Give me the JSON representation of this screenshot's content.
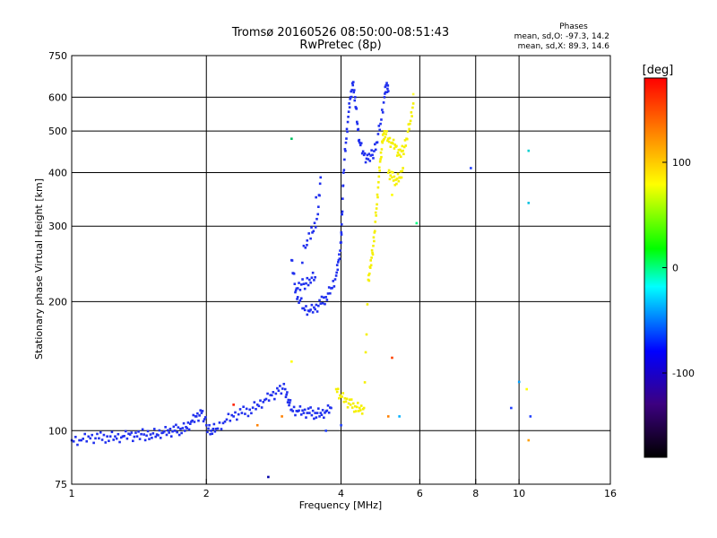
{
  "chart_data": {
    "type": "scatter",
    "title": "Tromsø 20160526 08:50:00-08:51:43",
    "subtitle": "RwPretec (8p)",
    "xlabel": "Frequency [MHz]",
    "ylabel": "Stationary phase Virtual Height [km]",
    "x_scale": "log",
    "y_scale": "log",
    "xlim": [
      1,
      16
    ],
    "ylim": [
      75,
      750
    ],
    "x_ticks": [
      1,
      2,
      4,
      6,
      8,
      10,
      16
    ],
    "y_ticks": [
      75,
      100,
      200,
      300,
      400,
      500,
      600,
      750
    ],
    "grid": true,
    "stats": {
      "heading": "Phases",
      "o_line": "mean, sd,O: -97.3, 14.2",
      "x_line": "mean, sd,X: 89.3, 14.6"
    },
    "colorbar": {
      "label": "[deg]",
      "range": [
        -180,
        180
      ],
      "ticks": [
        100,
        0,
        -100
      ],
      "colors": [
        "#000000",
        "#3c0080",
        "#0000ff",
        "#00ffff",
        "#00ff00",
        "#ffff00",
        "#ff0000"
      ]
    },
    "series": [
      {
        "name": "O",
        "color": "#1f2ff0",
        "description_points": []
      },
      {
        "name": "X",
        "color": "#ffff00"
      }
    ],
    "o_trace": {
      "color": "#2030ee",
      "points": [
        [
          1.0,
          95
        ],
        [
          1.05,
          95
        ],
        [
          1.1,
          96
        ],
        [
          1.15,
          96
        ],
        [
          1.2,
          97
        ],
        [
          1.25,
          97
        ],
        [
          1.3,
          97
        ],
        [
          1.35,
          98
        ],
        [
          1.4,
          97
        ],
        [
          1.45,
          98
        ],
        [
          1.5,
          98
        ],
        [
          1.55,
          98
        ],
        [
          1.6,
          99
        ],
        [
          1.65,
          99
        ],
        [
          1.7,
          100
        ],
        [
          1.75,
          101
        ],
        [
          1.8,
          102
        ],
        [
          1.85,
          105
        ],
        [
          1.9,
          108
        ],
        [
          1.95,
          110
        ],
        [
          2.0,
          103
        ],
        [
          2.05,
          100
        ],
        [
          2.1,
          101
        ],
        [
          2.2,
          105
        ],
        [
          2.3,
          108
        ],
        [
          2.4,
          110
        ],
        [
          2.5,
          112
        ],
        [
          2.6,
          115
        ],
        [
          2.7,
          118
        ],
        [
          2.8,
          121
        ],
        [
          2.9,
          124
        ],
        [
          3.0,
          125
        ],
        [
          3.05,
          118
        ],
        [
          3.1,
          112
        ],
        [
          3.2,
          111
        ],
        [
          3.3,
          110
        ],
        [
          3.4,
          110
        ],
        [
          3.5,
          110
        ],
        [
          3.6,
          110
        ],
        [
          3.7,
          111
        ],
        [
          3.8,
          113
        ],
        [
          3.1,
          250
        ],
        [
          3.15,
          220
        ],
        [
          3.2,
          205
        ],
        [
          3.3,
          193
        ],
        [
          3.4,
          190
        ],
        [
          3.5,
          192
        ],
        [
          3.6,
          198
        ],
        [
          3.7,
          205
        ],
        [
          3.8,
          215
        ],
        [
          3.9,
          230
        ],
        [
          3.95,
          250
        ],
        [
          4.0,
          275
        ],
        [
          4.02,
          320
        ],
        [
          4.05,
          400
        ],
        [
          4.1,
          470
        ],
        [
          4.15,
          540
        ],
        [
          4.2,
          600
        ],
        [
          4.25,
          640
        ],
        [
          4.3,
          600
        ],
        [
          4.35,
          520
        ],
        [
          4.4,
          470
        ],
        [
          4.5,
          440
        ],
        [
          4.6,
          430
        ],
        [
          4.7,
          440
        ],
        [
          4.8,
          470
        ],
        [
          4.9,
          520
        ],
        [
          5.0,
          600
        ],
        [
          5.05,
          640
        ],
        [
          5.1,
          620
        ],
        [
          3.3,
          270
        ],
        [
          3.45,
          290
        ],
        [
          3.55,
          320
        ],
        [
          3.6,
          390
        ],
        [
          3.2,
          215
        ],
        [
          3.3,
          220
        ],
        [
          3.4,
          225
        ],
        [
          3.5,
          228
        ]
      ]
    },
    "x_trace": {
      "color": "#f5f000",
      "points": [
        [
          3.9,
          125
        ],
        [
          4.0,
          120
        ],
        [
          4.1,
          117
        ],
        [
          4.2,
          115
        ],
        [
          4.3,
          114
        ],
        [
          4.4,
          113
        ],
        [
          4.5,
          113
        ],
        [
          4.6,
          225
        ],
        [
          4.65,
          240
        ],
        [
          4.7,
          260
        ],
        [
          4.75,
          290
        ],
        [
          4.8,
          330
        ],
        [
          4.85,
          380
        ],
        [
          4.9,
          430
        ],
        [
          4.95,
          470
        ],
        [
          5.0,
          500
        ],
        [
          5.1,
          480
        ],
        [
          5.2,
          470
        ],
        [
          5.3,
          460
        ],
        [
          5.4,
          440
        ],
        [
          5.5,
          450
        ],
        [
          5.6,
          480
        ],
        [
          5.7,
          520
        ],
        [
          5.8,
          580
        ],
        [
          5.1,
          400
        ],
        [
          5.2,
          390
        ],
        [
          5.3,
          385
        ],
        [
          5.4,
          390
        ],
        [
          5.5,
          410
        ]
      ]
    },
    "scatter_points": [
      [
        3.1,
        480,
        "#00c060"
      ],
      [
        7.8,
        410,
        "#2040ff"
      ],
      [
        10.5,
        450,
        "#00d0d0"
      ],
      [
        10.5,
        340,
        "#00c0e0"
      ],
      [
        10.4,
        125,
        "#ffff00"
      ],
      [
        10.0,
        130,
        "#00a0ff"
      ],
      [
        9.6,
        113,
        "#2040ff"
      ],
      [
        10.6,
        108,
        "#2040ff"
      ],
      [
        10.5,
        95,
        "#ffa000"
      ],
      [
        5.2,
        148,
        "#ff4000"
      ],
      [
        5.1,
        108,
        "#ff8000"
      ],
      [
        5.4,
        108,
        "#00b0ff"
      ],
      [
        4.0,
        103,
        "#2040ff"
      ],
      [
        3.7,
        100,
        "#2040ff"
      ],
      [
        2.6,
        103,
        "#ff8000"
      ],
      [
        2.75,
        78,
        "#0000aa"
      ],
      [
        2.95,
        108,
        "#ff8000"
      ],
      [
        3.1,
        145,
        "#ffff00"
      ],
      [
        2.3,
        115,
        "#ff2000"
      ],
      [
        5.9,
        305,
        "#00ff80"
      ],
      [
        5.8,
        610,
        "#ffff40"
      ],
      [
        5.2,
        355,
        "#ffff00"
      ]
    ]
  }
}
